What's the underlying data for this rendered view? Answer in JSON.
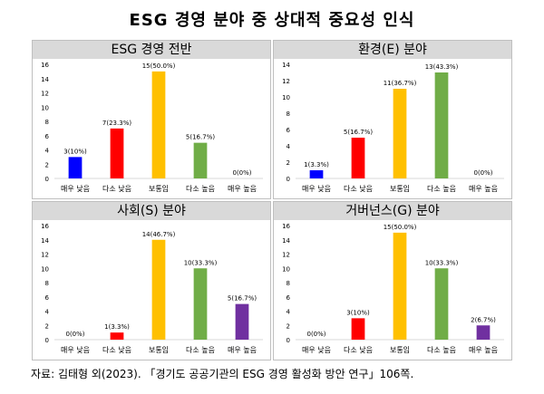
{
  "title": "ESG 경영 분야 중 상대적 중요성 인식",
  "source": "자료: 김태형 외(2023). 「경기도 공공기관의 ESG 경영 활성화 방안 연구」106쪽.",
  "colors": [
    "#0000ff",
    "#ff0000",
    "#ffc000",
    "#70ad47",
    "#7030a0"
  ],
  "chart_data": [
    {
      "type": "bar",
      "title": "ESG 경영 전반",
      "categories": [
        "매우 낮음",
        "다소 낮음",
        "보통임",
        "다소 높음",
        "매우 높음"
      ],
      "values": [
        3,
        7,
        15,
        5,
        0
      ],
      "labels": [
        "3(10%)",
        "7(23.3%)",
        "15(50.0%)",
        "5(16.7%)",
        "0(0%)"
      ],
      "ylim": [
        0,
        16
      ],
      "yticks": [
        0,
        2,
        4,
        6,
        8,
        10,
        12,
        14,
        16
      ]
    },
    {
      "type": "bar",
      "title": "환경(E) 분야",
      "categories": [
        "매우 낮음",
        "다소 낮음",
        "보통임",
        "다소 높음",
        "매우 높음"
      ],
      "values": [
        1,
        5,
        11,
        13,
        0
      ],
      "labels": [
        "1(3.3%)",
        "5(16.7%)",
        "11(36.7%)",
        "13(43.3%)",
        "0(0%)"
      ],
      "ylim": [
        0,
        14
      ],
      "yticks": [
        0,
        2,
        4,
        6,
        8,
        10,
        12,
        14
      ]
    },
    {
      "type": "bar",
      "title": "사회(S) 분야",
      "categories": [
        "매우 낮음",
        "다소 낮음",
        "보통임",
        "다소 높음",
        "매우 높음"
      ],
      "values": [
        0,
        1,
        14,
        10,
        5
      ],
      "labels": [
        "0(0%)",
        "1(3.3%)",
        "14(46.7%)",
        "10(33.3%)",
        "5(16.7%)"
      ],
      "ylim": [
        0,
        16
      ],
      "yticks": [
        0,
        2,
        4,
        6,
        8,
        10,
        12,
        14,
        16
      ]
    },
    {
      "type": "bar",
      "title": "거버넌스(G) 분야",
      "categories": [
        "매우 낮음",
        "다소 낮음",
        "보통임",
        "다소 높음",
        "매우 높음"
      ],
      "values": [
        0,
        3,
        15,
        10,
        2
      ],
      "labels": [
        "0(0%)",
        "3(10%)",
        "15(50.0%)",
        "10(33.3%)",
        "2(6.7%)"
      ],
      "ylim": [
        0,
        16
      ],
      "yticks": [
        0,
        2,
        4,
        6,
        8,
        10,
        12,
        14,
        16
      ]
    }
  ]
}
